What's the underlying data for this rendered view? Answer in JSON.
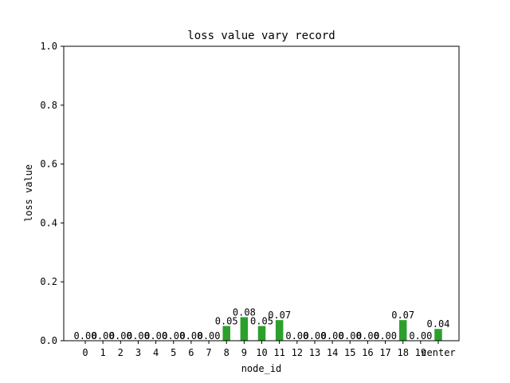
{
  "chart_data": {
    "type": "bar",
    "title": "loss value vary record",
    "xlabel": "node_id",
    "ylabel": "loss value",
    "categories": [
      "0",
      "1",
      "2",
      "3",
      "4",
      "5",
      "6",
      "7",
      "8",
      "9",
      "10",
      "11",
      "12",
      "13",
      "14",
      "15",
      "16",
      "17",
      "18",
      "19",
      "center"
    ],
    "values": [
      0.0,
      0.0,
      0.0,
      0.0,
      0.0,
      0.0,
      0.0,
      0.0,
      0.05,
      0.08,
      0.05,
      0.07,
      0.0,
      0.0,
      0.0,
      0.0,
      0.0,
      0.0,
      0.07,
      0.0,
      0.04
    ],
    "value_labels": [
      "0.00",
      "0.00",
      "0.00",
      "0.00",
      "0.00",
      "0.00",
      "0.00",
      "0.00",
      "0.05",
      "0.08",
      "0.05",
      "0.07",
      "0.00",
      "0.00",
      "0.00",
      "0.00",
      "0.00",
      "0.00",
      "0.07",
      "0.00",
      "0.04"
    ],
    "ylim": [
      0,
      1.0
    ],
    "yticks": [
      0.0,
      0.2,
      0.4,
      0.6,
      0.8,
      1.0
    ],
    "ytick_labels": [
      "0.0",
      "0.2",
      "0.4",
      "0.6",
      "0.8",
      "1.0"
    ],
    "bar_color": "#2ca02c",
    "grid": false,
    "legend": "none"
  }
}
